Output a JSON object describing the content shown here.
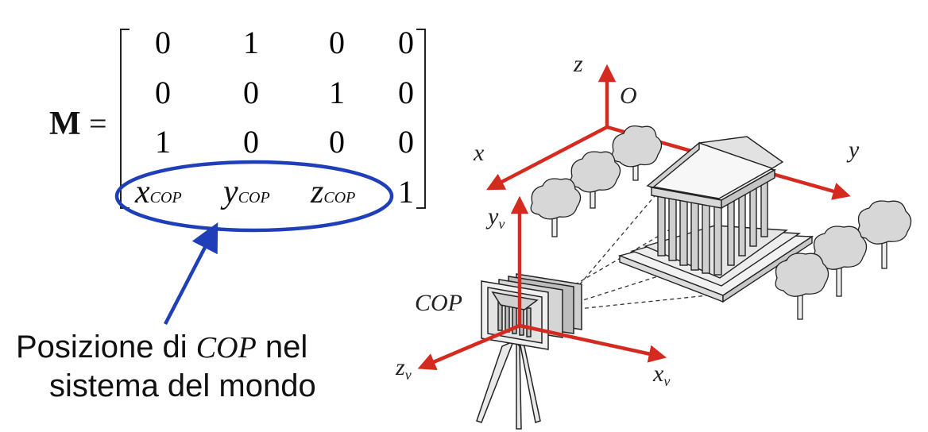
{
  "matrix": {
    "name": "M",
    "equals": "=",
    "rows": [
      [
        "0",
        "1",
        "0",
        "0"
      ],
      [
        "0",
        "0",
        "1",
        "0"
      ],
      [
        "1",
        "0",
        "0",
        "0"
      ]
    ],
    "last_row": {
      "x_base": "x",
      "x_sub": "COP",
      "y_base": "y",
      "y_sub": "COP",
      "z_base": "z",
      "z_sub": "COP",
      "one": "1"
    }
  },
  "annotation": {
    "caption_part1": "Posizione di ",
    "caption_italic": "COP",
    "caption_part2": " nel",
    "caption_line2": "sistema del mondo",
    "ellipse_color": "#1f3fb8",
    "arrow_color": "#1f3fb8"
  },
  "scene": {
    "axis_color": "#d42a20",
    "world": {
      "origin": "O",
      "x": "x",
      "y": "y",
      "z": "z"
    },
    "view": {
      "x_base": "x",
      "x_sub": "v",
      "y_base": "y",
      "y_sub": "v",
      "z_base": "z",
      "z_sub": "v"
    },
    "cop_label": "COP"
  }
}
